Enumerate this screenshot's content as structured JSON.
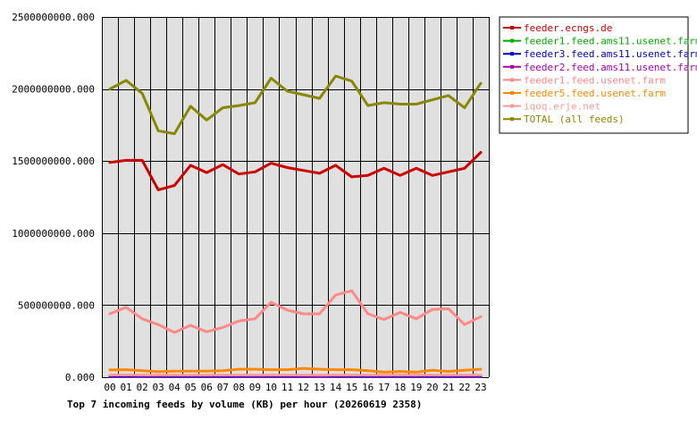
{
  "chart_data": {
    "type": "line",
    "title": "Top 7 incoming feeds by volume (KB) per hour (20260619 2358)",
    "xlabel": "",
    "ylabel": "",
    "ylim": [
      0,
      2500000000
    ],
    "yticks": [
      "0.000",
      "500000000.000",
      "1000000000.000",
      "1500000000.000",
      "2000000000.000",
      "2500000000.000"
    ],
    "yticks_values": [
      0,
      500000000,
      1000000000,
      1500000000,
      2000000000,
      2500000000
    ],
    "categories": [
      "00",
      "01",
      "02",
      "03",
      "04",
      "05",
      "06",
      "07",
      "08",
      "09",
      "10",
      "11",
      "12",
      "13",
      "14",
      "15",
      "16",
      "17",
      "18",
      "19",
      "20",
      "21",
      "22",
      "23"
    ],
    "grid": true,
    "legend_position": "right",
    "series": [
      {
        "name": "feeder.ecngs.de",
        "color": "#cc0000",
        "values": [
          1490000000,
          1505000000,
          1505000000,
          1300000000,
          1330000000,
          1470000000,
          1420000000,
          1475000000,
          1410000000,
          1425000000,
          1485000000,
          1455000000,
          1435000000,
          1415000000,
          1470000000,
          1390000000,
          1400000000,
          1450000000,
          1400000000,
          1450000000,
          1400000000,
          1425000000,
          1450000000,
          1560000000
        ]
      },
      {
        "name": "feeder1.feed.ams11.usenet.farm",
        "color": "#00aa00",
        "values": [
          5000000,
          6000000,
          6000000,
          6000000,
          6000000,
          6000000,
          6000000,
          6000000,
          6000000,
          6000000,
          6000000,
          6000000,
          6000000,
          6000000,
          6000000,
          6000000,
          6000000,
          6000000,
          6000000,
          6000000,
          6000000,
          6000000,
          6000000,
          6000000
        ]
      },
      {
        "name": "feeder3.feed.ams11.usenet.farm",
        "color": "#0000cc",
        "values": [
          8000000,
          9000000,
          9000000,
          8000000,
          8000000,
          8000000,
          8000000,
          8000000,
          8000000,
          9000000,
          8000000,
          8000000,
          9000000,
          12000000,
          8000000,
          8000000,
          8000000,
          8000000,
          8000000,
          8000000,
          8000000,
          8000000,
          8000000,
          9000000
        ]
      },
      {
        "name": "feeder2.feed.ams11.usenet.farm",
        "color": "#aa00aa",
        "values": [
          3000000,
          3000000,
          3000000,
          3000000,
          3000000,
          3000000,
          3000000,
          3000000,
          3000000,
          3000000,
          3000000,
          3000000,
          3000000,
          3000000,
          3000000,
          3000000,
          3000000,
          3000000,
          3000000,
          3000000,
          3000000,
          3000000,
          3000000,
          3000000
        ]
      },
      {
        "name": "feeder1.feed.usenet.farm",
        "color": "#ff8888",
        "values": [
          440000000,
          485000000,
          405000000,
          365000000,
          310000000,
          360000000,
          315000000,
          345000000,
          390000000,
          405000000,
          520000000,
          465000000,
          440000000,
          440000000,
          570000000,
          600000000,
          440000000,
          400000000,
          450000000,
          405000000,
          470000000,
          475000000,
          365000000,
          420000000
        ]
      },
      {
        "name": "feeder5.feed.usenet.farm",
        "color": "#ff8800",
        "values": [
          50000000,
          52000000,
          45000000,
          38000000,
          42000000,
          42000000,
          42000000,
          45000000,
          55000000,
          55000000,
          52000000,
          52000000,
          60000000,
          55000000,
          52000000,
          52000000,
          45000000,
          35000000,
          40000000,
          35000000,
          48000000,
          40000000,
          48000000,
          55000000
        ]
      },
      {
        "name": "iqoq.erje.net",
        "color": "#ff9999",
        "values": [
          14000000,
          15000000,
          14000000,
          14000000,
          14000000,
          14000000,
          14000000,
          14000000,
          14000000,
          14000000,
          14000000,
          14000000,
          14000000,
          14000000,
          14000000,
          14000000,
          14000000,
          14000000,
          14000000,
          14000000,
          14000000,
          14000000,
          14000000,
          14000000
        ]
      },
      {
        "name": "TOTAL (all feeds)",
        "color": "#888800",
        "values": [
          2000000000,
          2060000000,
          1970000000,
          1710000000,
          1690000000,
          1880000000,
          1785000000,
          1870000000,
          1885000000,
          1905000000,
          2075000000,
          1985000000,
          1960000000,
          1935000000,
          2090000000,
          2055000000,
          1885000000,
          1905000000,
          1895000000,
          1895000000,
          1925000000,
          1955000000,
          1870000000,
          2040000000
        ]
      }
    ]
  }
}
